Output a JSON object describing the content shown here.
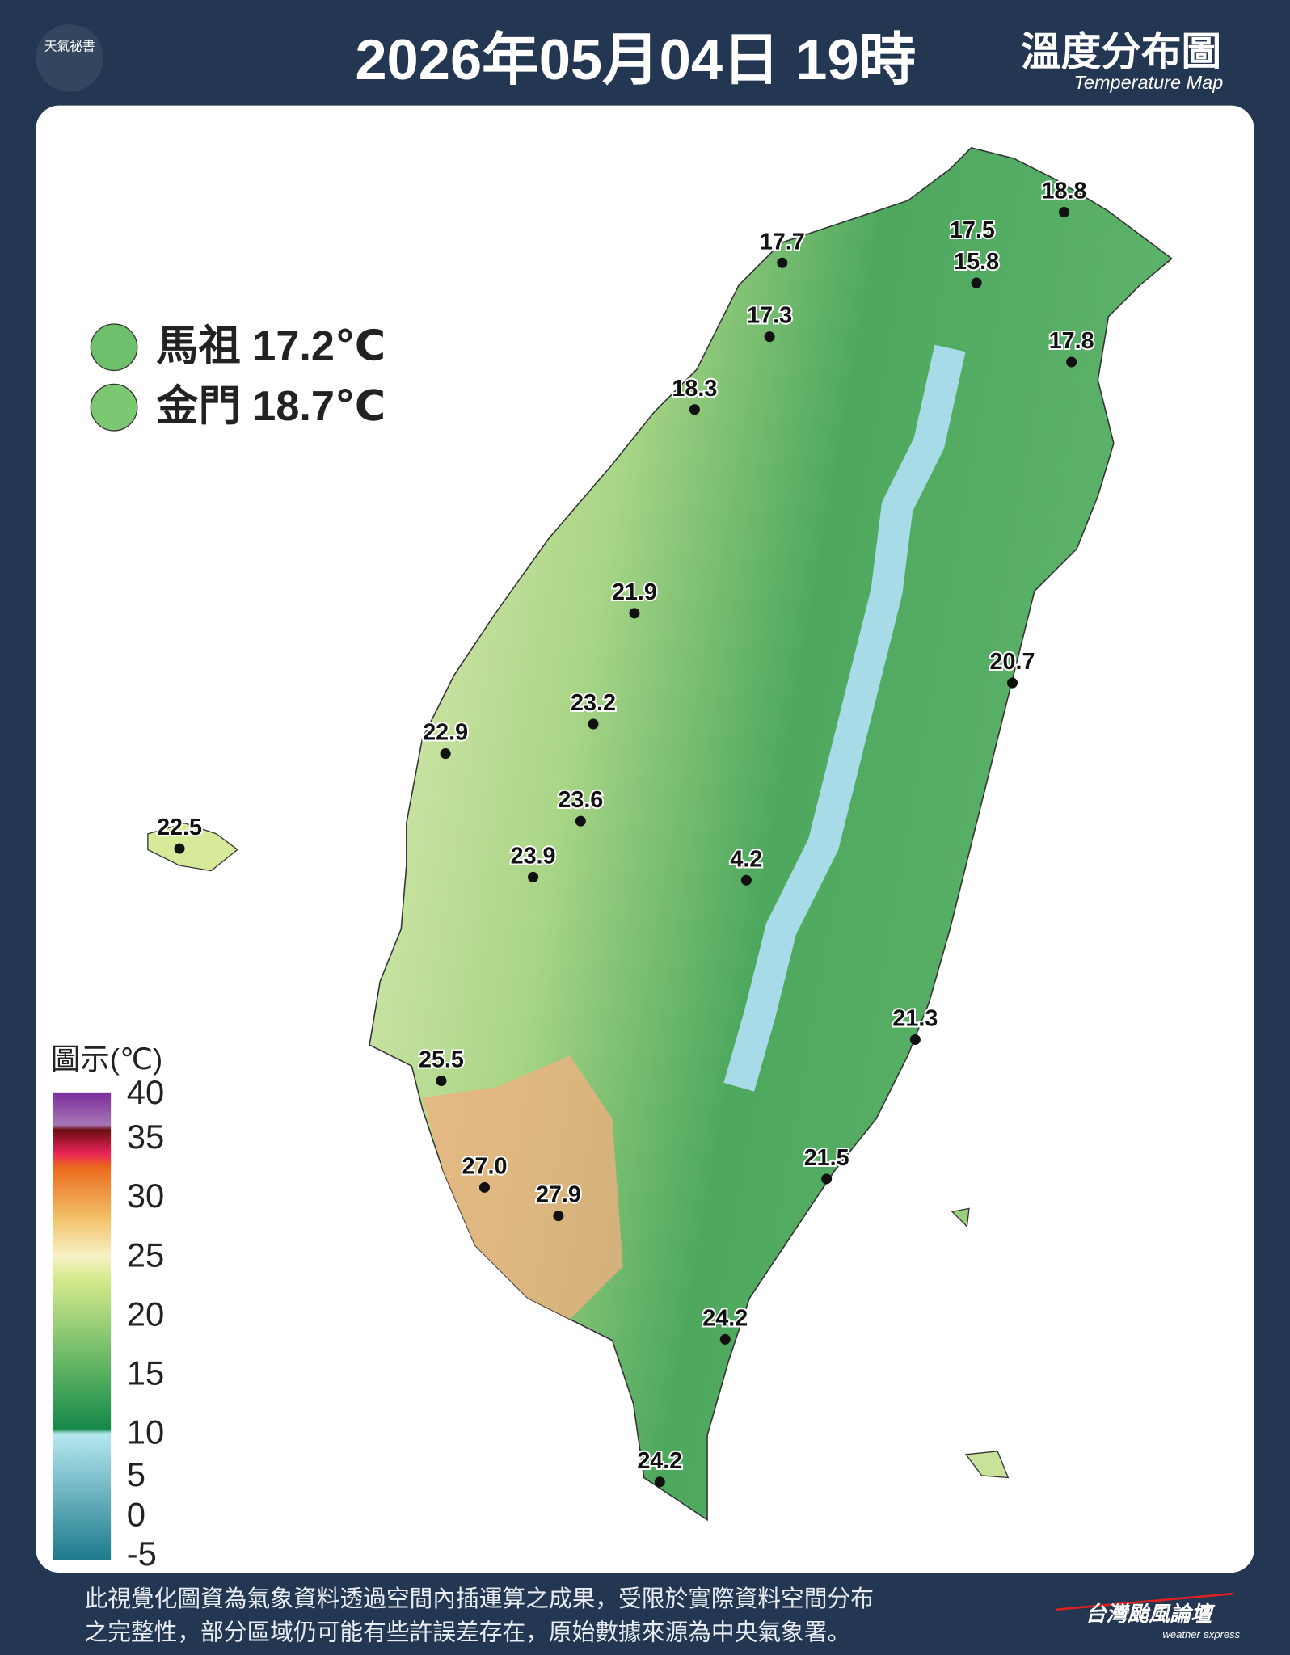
{
  "header": {
    "logo": "天氣祕書",
    "title": "2026年05月04日 19時",
    "map_title": "溫度分布圖",
    "map_subtitle": "Temperature Map"
  },
  "islands": [
    "馬祖 17.2℃",
    "金門 18.7℃"
  ],
  "stations": [
    "18.8",
    "17.5",
    "15.8",
    "17.7",
    "17.3",
    "17.8",
    "18.3",
    "21.9",
    "20.7",
    "23.2",
    "22.9",
    "22.5",
    "23.6",
    "23.9",
    "4.2",
    "21.3",
    "25.5",
    "21.5",
    "27.0",
    "27.9",
    "24.2",
    "24.2"
  ],
  "legend": {
    "title": "圖示(℃)",
    "ticks": [
      "40",
      "35",
      "30",
      "25",
      "20",
      "15",
      "10",
      "5",
      "0",
      "-5"
    ]
  },
  "footer": {
    "lines": [
      "此視覺化圖資為氣象資料透過空間內插運算之成果，受限於實際資料空間分布",
      "之完整性，部分區域仍可能有些許誤差存在，原始數據來源為中央氣象署。"
    ],
    "brand": "台灣颱風論壇",
    "brand_sub": "weather express"
  }
}
